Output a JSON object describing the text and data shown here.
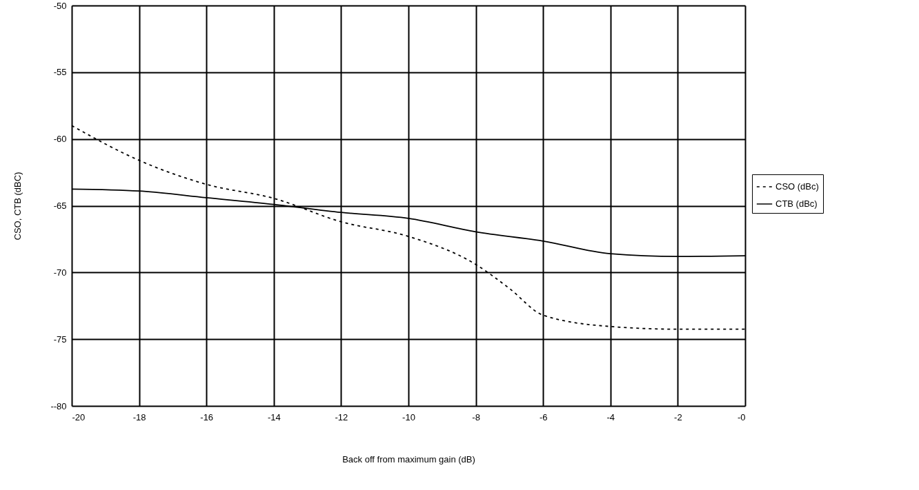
{
  "chart_data": {
    "type": "line",
    "xlabel": "Back off from maximum gain (dB)",
    "ylabel": "CSO, CTB (dBC)",
    "x": [
      -20,
      -18,
      -16,
      -14,
      -12,
      -10,
      -8,
      -7,
      -6,
      -4,
      -2,
      0
    ],
    "series": [
      {
        "name": "CSO (dBc)",
        "color": "#000000",
        "line_style": "dashed",
        "values": [
          -59.0,
          -61.6,
          -63.4,
          -64.45,
          -66.2,
          -67.3,
          -69.4,
          -71.2,
          -73.2,
          -74.05,
          -74.25,
          -74.25
        ]
      },
      {
        "name": "CTB (dBc)",
        "color": "#000000",
        "line_style": "solid",
        "x": [
          -20,
          -18,
          -16,
          -14,
          -12,
          -10,
          -8,
          -6,
          -4,
          -2,
          0
        ],
        "values": [
          -63.75,
          -63.9,
          -64.4,
          -64.9,
          -65.5,
          -65.95,
          -66.95,
          -67.65,
          -68.6,
          -68.8,
          -68.75
        ]
      }
    ],
    "xlim": [
      -20,
      0
    ],
    "xticks": [
      -20,
      -18,
      -16,
      -14,
      -12,
      -10,
      -8,
      -6,
      -4,
      -2,
      {
        "value": 0,
        "label": "-0"
      }
    ],
    "ylim": [
      -80,
      -50
    ],
    "yticks": [
      {
        "value": -80,
        "label": "--80"
      },
      -75,
      -70,
      -65,
      -60,
      -55,
      -50
    ],
    "grid": true,
    "legend": "right",
    "marker": "none"
  }
}
